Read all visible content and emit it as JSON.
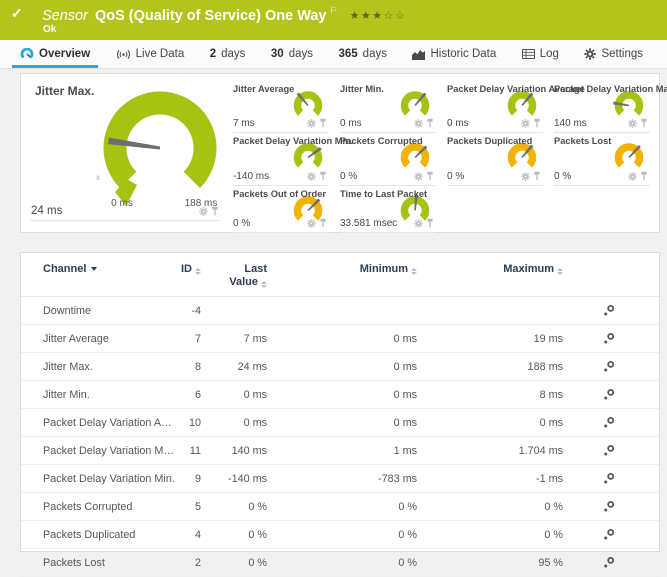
{
  "header": {
    "status_icon": "✓",
    "kind_label": "Sensor",
    "title": "QoS (Quality of Service) One Way",
    "flag_icon": "⚐",
    "stars": "★★★☆☆",
    "status_text": "Ok"
  },
  "tabs": [
    {
      "label": "Overview",
      "icon": "gauge",
      "active": true
    },
    {
      "label": "Live Data",
      "icon": "broadcast",
      "active": false
    },
    {
      "prefix": "2",
      "label": "days",
      "active": false
    },
    {
      "prefix": "30",
      "label": "days",
      "active": false
    },
    {
      "prefix": "365",
      "label": "days",
      "active": false
    },
    {
      "label": "Historic Data",
      "icon": "histogram",
      "active": false
    },
    {
      "label": "Log",
      "icon": "log",
      "active": false
    },
    {
      "label": "Settings",
      "icon": "gear",
      "active": false
    }
  ],
  "colors": {
    "header_bg": "#b5c31d",
    "gauge_green": "#a6c213",
    "gauge_yellow": "#f0b400",
    "needle_gray": "#6e6e6e",
    "accent_blue": "#2ba7de"
  },
  "gauges": {
    "primary": {
      "label": "Jitter Max.",
      "value": "24 ms",
      "scale_min": "0 ms",
      "scale_max": "188 ms",
      "color": "green",
      "fraction": 0.196,
      "x_marker": "x"
    },
    "small": [
      {
        "label": "Jitter Average",
        "value": "7 ms",
        "color": "green",
        "fraction": 0.35
      },
      {
        "label": "Jitter Min.",
        "value": "0 ms",
        "color": "green",
        "fraction": 0.65
      },
      {
        "label": "Packet Delay Variation Average",
        "value": "0 ms",
        "color": "green",
        "fraction": 0.65
      },
      {
        "label": "Packet Delay Variation Max.",
        "value": "140 ms",
        "color": "green",
        "fraction": 0.2
      },
      {
        "label": "Packet Delay Variation Min.",
        "value": "-140 ms",
        "color": "green",
        "fraction": 0.7
      },
      {
        "label": "Packets Corrupted",
        "value": "0 %",
        "color": "yellow",
        "fraction": 0.67
      },
      {
        "label": "Packets Duplicated",
        "value": "0 %",
        "color": "yellow",
        "fraction": 0.65
      },
      {
        "label": "Packets Lost",
        "value": "0 %",
        "color": "yellow",
        "fraction": 0.66
      },
      {
        "label": "Packets Out of Order",
        "value": "0 %",
        "color": "yellow",
        "fraction": 0.67
      },
      {
        "label": "Time to Last Packet",
        "value": "33.581 msec",
        "color": "green",
        "fraction": 0.52
      }
    ]
  },
  "table": {
    "headers": {
      "channel": "Channel",
      "id": "ID",
      "last_line1": "Last",
      "last_line2": "Value",
      "minimum": "Minimum",
      "maximum": "Maximum"
    },
    "rows": [
      {
        "channel": "Downtime",
        "id": "-4",
        "last": "",
        "min": "",
        "max": ""
      },
      {
        "channel": "Jitter Average",
        "id": "7",
        "last": "7 ms",
        "min": "0 ms",
        "max": "19 ms"
      },
      {
        "channel": "Jitter Max.",
        "id": "8",
        "last": "24 ms",
        "min": "0 ms",
        "max": "188 ms"
      },
      {
        "channel": "Jitter Min.",
        "id": "6",
        "last": "0 ms",
        "min": "0 ms",
        "max": "8 ms"
      },
      {
        "channel": "Packet Delay Variation Average",
        "id": "10",
        "last": "0 ms",
        "min": "0 ms",
        "max": "0 ms"
      },
      {
        "channel": "Packet Delay Variation Max.",
        "id": "11",
        "last": "140 ms",
        "min": "1 ms",
        "max": "1.704 ms"
      },
      {
        "channel": "Packet Delay Variation Min.",
        "id": "9",
        "last": "-140 ms",
        "min": "-783 ms",
        "max": "-1 ms"
      },
      {
        "channel": "Packets Corrupted",
        "id": "5",
        "last": "0 %",
        "min": "0 %",
        "max": "0 %"
      },
      {
        "channel": "Packets Duplicated",
        "id": "4",
        "last": "0 %",
        "min": "0 %",
        "max": "0 %"
      },
      {
        "channel": "Packets Lost",
        "id": "2",
        "last": "0 %",
        "min": "0 %",
        "max": "95 %"
      }
    ]
  }
}
